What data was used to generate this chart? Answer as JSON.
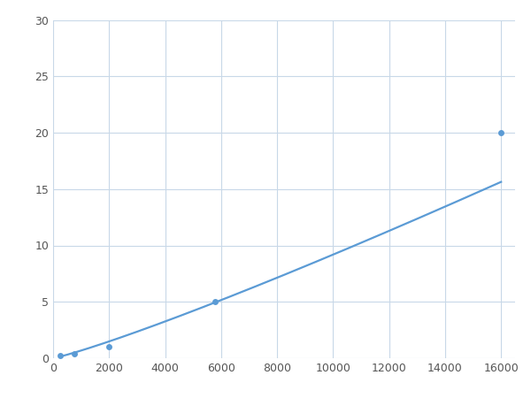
{
  "x_data": [
    250,
    750,
    2000,
    5800,
    16000
  ],
  "y_data": [
    0.2,
    0.4,
    1.0,
    5.0,
    20.0
  ],
  "line_color": "#5B9BD5",
  "marker_color": "#5B9BD5",
  "marker_size": 5,
  "line_width": 1.6,
  "xlim": [
    0,
    16500
  ],
  "ylim": [
    0,
    30
  ],
  "xticks": [
    0,
    2000,
    4000,
    6000,
    8000,
    10000,
    12000,
    14000,
    16000
  ],
  "yticks": [
    0,
    5,
    10,
    15,
    20,
    25,
    30
  ],
  "grid_color": "#C8D8E8",
  "background_color": "#FFFFFF",
  "figsize": [
    6.0,
    4.5
  ],
  "dpi": 100
}
